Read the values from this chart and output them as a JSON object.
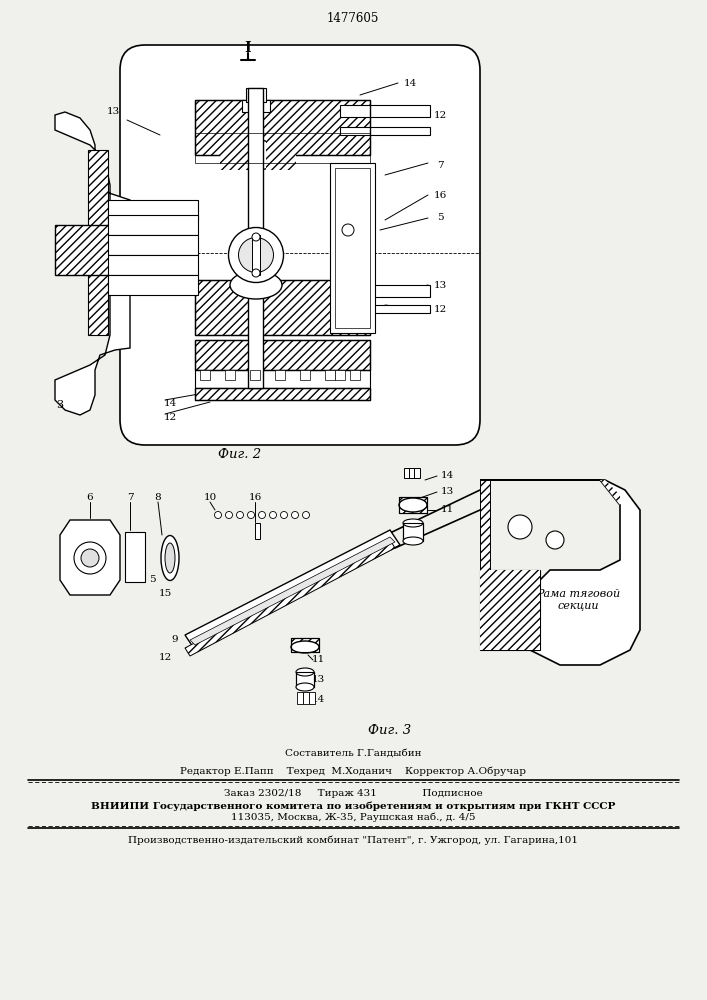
{
  "patent_number": "1477605",
  "fig2_label": "Фиг. 2",
  "fig3_label": "Фиг. 3",
  "sestavitel_line": "Составитель Г.Гандыбин",
  "editor_line": "Редактор Е.Папп    Техред  М.Ходанич    Корректор А.Обручар",
  "zakaz_line": "Заказ 2302/18     Тираж 431              Подписное",
  "vniip_line": "ВНИИПИ Государственного комитета по изобретениям и открытиям при ГКНТ СССР",
  "address_line": "113035, Москва, Ж-35, Раушская наб., д. 4/5",
  "kombinat_line": "Производственно-издательский комбинат \"Патент\", г. Ужгород, ул. Гагарина,101",
  "rama_label": "Рама тяговой\nсекции",
  "bg_color": "#f0f0ec"
}
